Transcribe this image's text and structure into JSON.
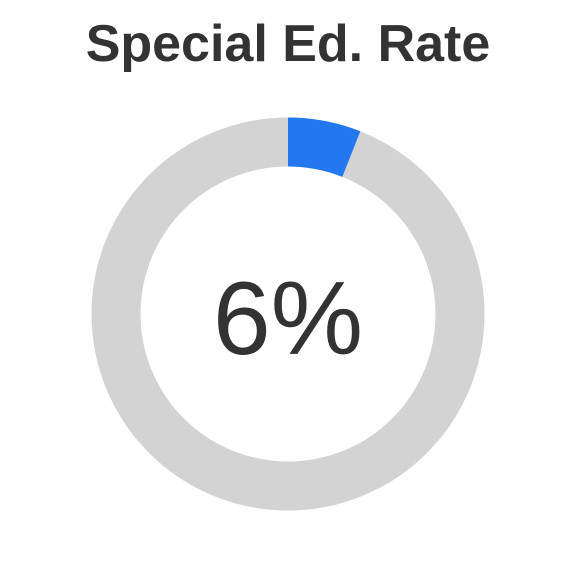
{
  "chart_data": {
    "type": "pie",
    "title": "Special Ed. Rate",
    "center_label": "6%",
    "value_percent": 6,
    "slices": [
      {
        "label": "",
        "value": 6,
        "color": "#2377f0"
      },
      {
        "label": "",
        "value": 94,
        "color": "#d3d3d3"
      }
    ],
    "colors": {
      "filled": "#2377f0",
      "track": "#d3d3d3",
      "text": "#333333"
    }
  }
}
